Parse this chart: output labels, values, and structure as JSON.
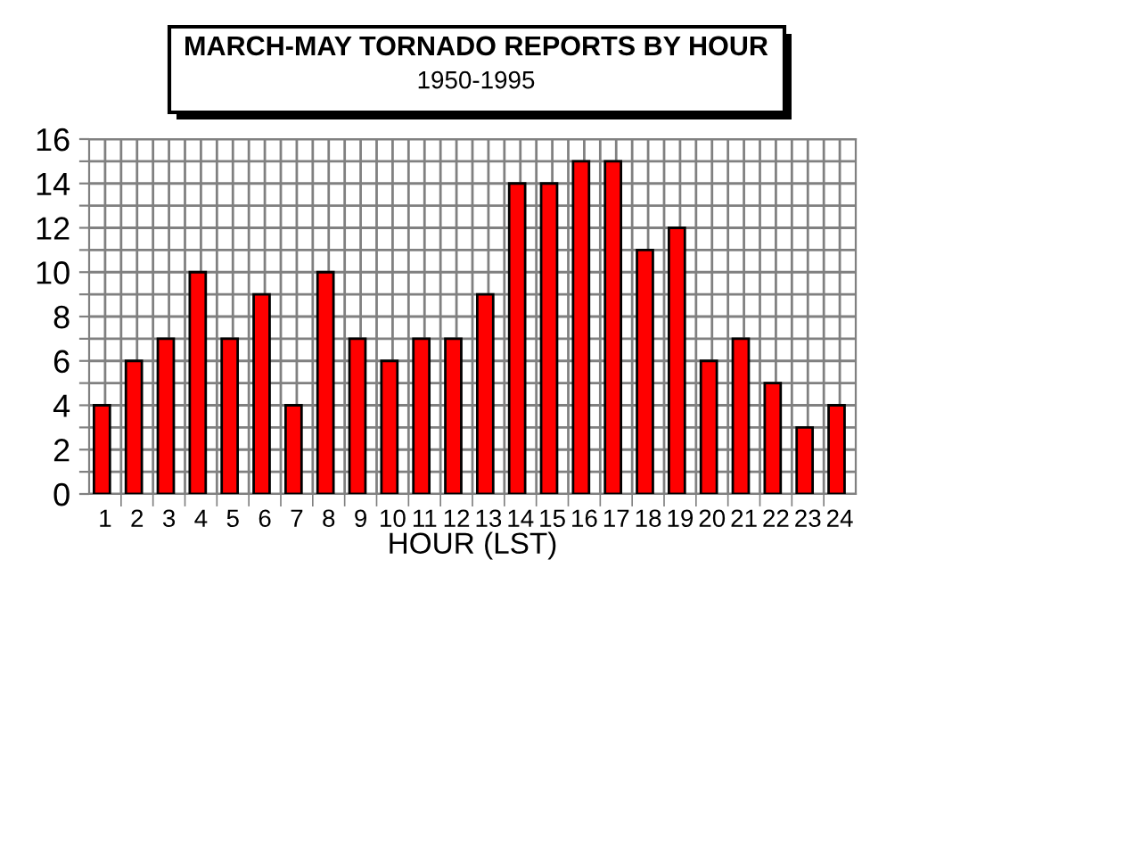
{
  "chart_data": {
    "type": "bar",
    "title": "MARCH-MAY TORNADO REPORTS BY HOUR",
    "subtitle": "1950-1995",
    "xlabel": "HOUR (LST)",
    "categories": [
      "1",
      "2",
      "3",
      "4",
      "5",
      "6",
      "7",
      "8",
      "9",
      "10",
      "11",
      "12",
      "13",
      "14",
      "15",
      "16",
      "17",
      "18",
      "19",
      "20",
      "21",
      "22",
      "23",
      "24"
    ],
    "values": [
      4,
      6,
      7,
      10,
      7,
      9,
      4,
      10,
      7,
      6,
      7,
      7,
      9,
      14,
      14,
      15,
      15,
      11,
      12,
      6,
      7,
      5,
      3,
      4
    ],
    "color": "#ff0000",
    "ylim": [
      0,
      16
    ],
    "yticks": [
      0,
      {
        "value": 1,
        "label": null
      },
      2,
      {
        "value": 3,
        "label": null
      },
      4,
      {
        "value": 5,
        "label": null
      },
      6,
      {
        "value": 7,
        "label": null
      },
      8,
      {
        "value": 9,
        "label": null
      },
      10,
      {
        "value": 11,
        "label": null
      },
      12,
      {
        "value": 13,
        "label": null
      },
      14,
      {
        "value": 15,
        "label": null
      },
      16
    ],
    "grid": true
  }
}
